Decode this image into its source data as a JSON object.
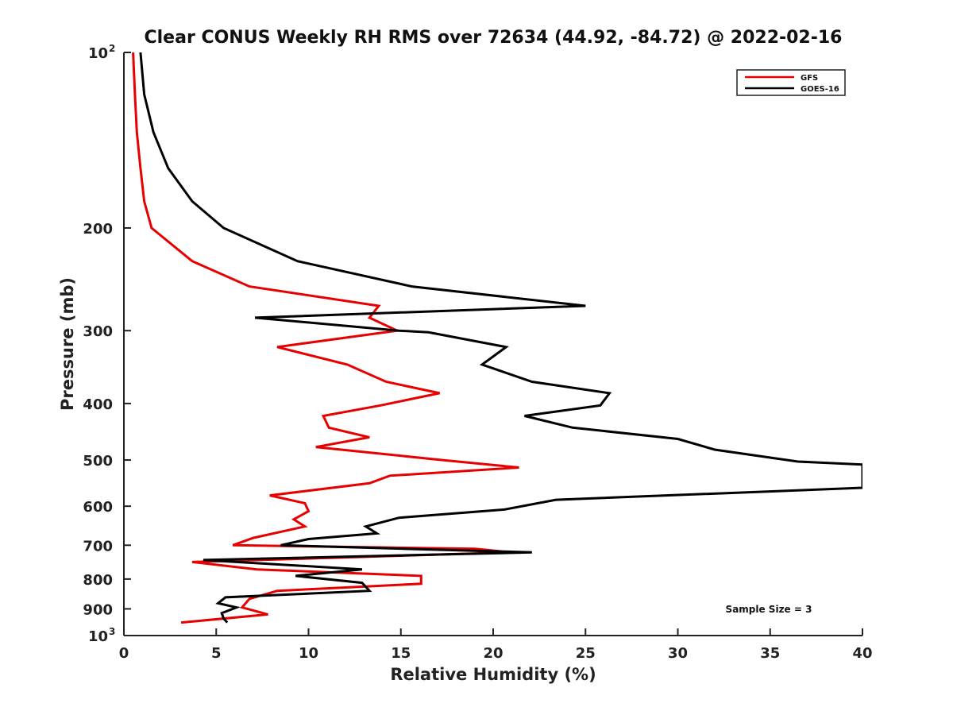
{
  "chart_data": {
    "type": "line",
    "title": "Clear CONUS Weekly RH RMS over 72634 (44.92, -84.72) @ 2022-02-16",
    "xlabel": "Relative Humidity (%)",
    "ylabel": "Pressure (mb)",
    "xlim": [
      0,
      40
    ],
    "ylim": [
      100,
      1000
    ],
    "y_scale": "log",
    "y_reversed": true,
    "grid": false,
    "legend_position": "top-right",
    "x_ticks": [
      0,
      5,
      10,
      15,
      20,
      25,
      30,
      35,
      40
    ],
    "x_tick_labels": [
      "0",
      "5",
      "10",
      "15",
      "20",
      "25",
      "30",
      "35",
      "40"
    ],
    "y_ticks": [
      100,
      200,
      300,
      400,
      500,
      600,
      700,
      800,
      900,
      1000
    ],
    "y_tick_labels": [
      {
        "base": "10",
        "exp": "2"
      },
      {
        "base": "200"
      },
      {
        "base": "300"
      },
      {
        "base": "400"
      },
      {
        "base": "500"
      },
      {
        "base": "600"
      },
      {
        "base": "700"
      },
      {
        "base": "800"
      },
      {
        "base": "900"
      },
      {
        "base": "10",
        "exp": "3"
      }
    ],
    "annotation": "Sample Size = 3",
    "series": [
      {
        "name": "GFS",
        "color": "#e60000",
        "x": [
          0.5,
          0.6,
          0.7,
          0.9,
          1.1,
          1.5,
          3.7,
          6.8,
          13.8,
          13.3,
          14.8,
          8.3,
          12.1,
          14.2,
          17.1,
          13.9,
          10.8,
          11.1,
          13.3,
          10.4,
          17.2,
          21.4,
          14.4,
          13.3,
          7.9,
          9.8,
          10.0,
          9.2,
          9.8,
          7.0,
          5.9,
          19.0,
          21.0,
          3.7,
          7.2,
          16.1,
          16.1,
          8.3,
          6.8,
          6.4,
          7.8,
          3.1
        ],
        "y": [
          100,
          118,
          137,
          158,
          180,
          200,
          228,
          252,
          272,
          285,
          300,
          320,
          343,
          367,
          384,
          403,
          420,
          440,
          457,
          475,
          500,
          515,
          532,
          548,
          575,
          593,
          612,
          632,
          650,
          680,
          700,
          710,
          720,
          748,
          770,
          790,
          815,
          838,
          865,
          895,
          920,
          950
        ]
      },
      {
        "name": "GOES-16",
        "color": "#000000",
        "x": [
          0.9,
          1.1,
          1.6,
          2.4,
          3.7,
          5.4,
          9.4,
          15.6,
          25.0,
          7.1,
          14.9,
          16.5,
          20.7,
          19.4,
          22.1,
          26.3,
          25.8,
          21.7,
          24.3,
          30.0,
          32.0,
          36.5,
          40.0,
          40.0,
          23.4,
          20.6,
          14.9,
          13.1,
          13.7,
          10.0,
          8.5,
          22.1,
          4.3,
          12.9,
          9.3,
          12.9,
          13.3,
          5.5,
          5.1,
          6.1,
          5.3,
          5.4,
          5.6
        ],
        "y": [
          100,
          118,
          137,
          158,
          180,
          200,
          228,
          252,
          272,
          285,
          300,
          302,
          320,
          343,
          367,
          384,
          403,
          420,
          440,
          460,
          480,
          503,
          509,
          558,
          585,
          608,
          628,
          650,
          668,
          683,
          700,
          720,
          742,
          770,
          790,
          812,
          838,
          860,
          880,
          895,
          915,
          935,
          950
        ]
      }
    ]
  }
}
